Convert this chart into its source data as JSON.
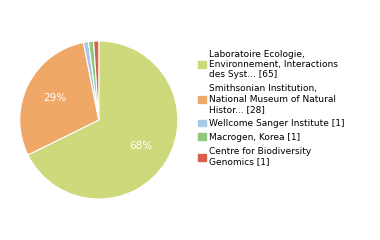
{
  "labels": [
    "Laboratoire Ecologie,\nEnvironnement, Interactions\ndes Syst... [65]",
    "Smithsonian Institution,\nNational Museum of Natural\nHistor... [28]",
    "Wellcome Sanger Institute [1]",
    "Macrogen, Korea [1]",
    "Centre for Biodiversity\nGenomics [1]"
  ],
  "values": [
    65,
    28,
    1,
    1,
    1
  ],
  "colors": [
    "#cdd97a",
    "#f0a868",
    "#a8c8e8",
    "#8fc87a",
    "#d8604a"
  ],
  "background_color": "#ffffff",
  "text_color": "#ffffff",
  "fontsize": 7.5,
  "legend_fontsize": 6.5,
  "startangle": 90
}
